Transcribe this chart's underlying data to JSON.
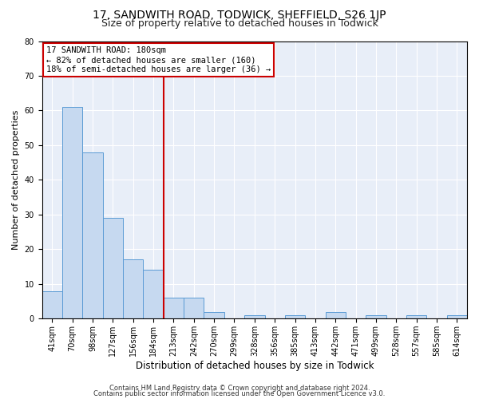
{
  "title1": "17, SANDWITH ROAD, TODWICK, SHEFFIELD, S26 1JP",
  "title2": "Size of property relative to detached houses in Todwick",
  "xlabel": "Distribution of detached houses by size in Todwick",
  "ylabel": "Number of detached properties",
  "categories": [
    "41sqm",
    "70sqm",
    "98sqm",
    "127sqm",
    "156sqm",
    "184sqm",
    "213sqm",
    "242sqm",
    "270sqm",
    "299sqm",
    "328sqm",
    "356sqm",
    "385sqm",
    "413sqm",
    "442sqm",
    "471sqm",
    "499sqm",
    "528sqm",
    "557sqm",
    "585sqm",
    "614sqm"
  ],
  "values": [
    8,
    61,
    48,
    29,
    17,
    14,
    6,
    6,
    2,
    0,
    1,
    0,
    1,
    0,
    2,
    0,
    1,
    0,
    1,
    0,
    1
  ],
  "bar_color": "#c6d9f0",
  "bar_edge_color": "#5b9bd5",
  "vline_x": 5.5,
  "vline_color": "#cc0000",
  "annotation_line1": "17 SANDWITH ROAD: 180sqm",
  "annotation_line2": "← 82% of detached houses are smaller (160)",
  "annotation_line3": "18% of semi-detached houses are larger (36) →",
  "annotation_box_color": "#ffffff",
  "annotation_box_edge": "#cc0000",
  "ylim": [
    0,
    80
  ],
  "yticks": [
    0,
    10,
    20,
    30,
    40,
    50,
    60,
    70,
    80
  ],
  "footer1": "Contains HM Land Registry data © Crown copyright and database right 2024.",
  "footer2": "Contains public sector information licensed under the Open Government Licence v3.0.",
  "bg_color": "#e8eef8",
  "fig_bg_color": "#ffffff",
  "title1_fontsize": 10,
  "title2_fontsize": 9,
  "annotation_fontsize": 7.5,
  "tick_fontsize": 7,
  "ylabel_fontsize": 8,
  "xlabel_fontsize": 8.5,
  "footer_fontsize": 6
}
